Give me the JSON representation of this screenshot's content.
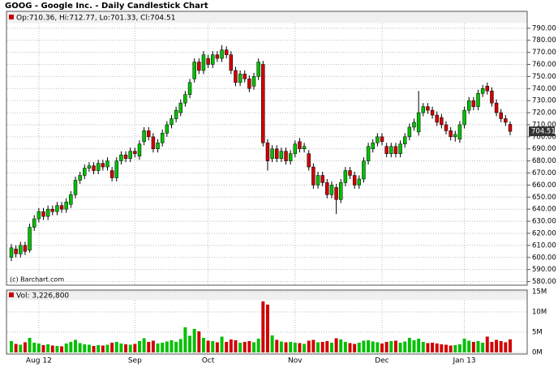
{
  "chart_data": {
    "type": "candlestick",
    "title": "GOOG - Google Inc. - Daily Candlestick Chart",
    "info": "Op:710.36, Hi:712.77, Lo:701.33, Cl:704.51",
    "credit": "(c) Barchart.com",
    "volume_label": "Vol: 3,226,800",
    "up_color": "#00c000",
    "down_color": "#d00000",
    "grid": true,
    "categories": [
      null,
      null,
      null,
      null,
      null,
      null,
      "Aug 12",
      null,
      null,
      null,
      null,
      null,
      null,
      null,
      null,
      null,
      null,
      null,
      null,
      null,
      null,
      null,
      null,
      null,
      null,
      null,
      null,
      "Sep",
      null,
      null,
      null,
      null,
      null,
      null,
      null,
      null,
      null,
      null,
      null,
      null,
      null,
      null,
      null,
      "Oct",
      null,
      null,
      null,
      null,
      null,
      null,
      null,
      null,
      null,
      null,
      null,
      null,
      null,
      null,
      null,
      null,
      null,
      null,
      "Nov",
      null,
      null,
      null,
      null,
      null,
      null,
      null,
      null,
      null,
      null,
      null,
      null,
      null,
      null,
      null,
      null,
      null,
      null,
      "Dec",
      null,
      null,
      null,
      null,
      null,
      null,
      null,
      null,
      null,
      null,
      null,
      null,
      null,
      null,
      null,
      null,
      null,
      "Jan 13",
      null,
      null,
      null,
      null,
      null,
      null,
      null,
      null,
      null,
      null
    ],
    "open": [
      600,
      607,
      603,
      610,
      606,
      625,
      632,
      638,
      634,
      640,
      638,
      643,
      640,
      644,
      652,
      664,
      668,
      674,
      676,
      672,
      678,
      675,
      672,
      666,
      680,
      685,
      682,
      688,
      684,
      696,
      705,
      700,
      690,
      695,
      703,
      710,
      715,
      720,
      728,
      735,
      748,
      762,
      755,
      765,
      760,
      768,
      765,
      772,
      768,
      755,
      745,
      752,
      748,
      742,
      750,
      760,
      695,
      682,
      690,
      682,
      688,
      680,
      686,
      696,
      690,
      686,
      675,
      660,
      668,
      662,
      652,
      658,
      648,
      662,
      672,
      668,
      660,
      665,
      680,
      690,
      695,
      700,
      692,
      686,
      692,
      686,
      694,
      700,
      708,
      704,
      720,
      725,
      722,
      718,
      716,
      710,
      705,
      700,
      698,
      710,
      722,
      730,
      725,
      736,
      742,
      738,
      728,
      720,
      715,
      710.36
    ],
    "high": [
      611,
      610,
      613,
      613,
      628,
      635,
      641,
      641,
      643,
      643,
      646,
      646,
      649,
      655,
      667,
      671,
      677,
      679,
      679,
      681,
      681,
      683,
      675,
      683,
      688,
      688,
      691,
      691,
      697,
      708,
      708,
      703,
      698,
      706,
      713,
      718,
      725,
      731,
      738,
      748,
      765,
      765,
      771,
      768,
      771,
      771,
      776,
      775,
      771,
      758,
      755,
      755,
      751,
      753,
      765,
      763,
      698,
      693,
      693,
      691,
      691,
      689,
      697,
      699,
      695,
      689,
      678,
      671,
      671,
      665,
      663,
      661,
      665,
      675,
      675,
      671,
      668,
      683,
      695,
      698,
      703,
      703,
      695,
      695,
      695,
      697,
      703,
      711,
      715,
      738,
      728,
      728,
      725,
      721,
      719,
      713,
      708,
      705,
      713,
      725,
      733,
      733,
      739,
      743,
      745,
      741,
      731,
      723,
      718,
      712.77
    ],
    "low": [
      597,
      600,
      600,
      602,
      604,
      622,
      629,
      631,
      631,
      635,
      635,
      637,
      637,
      641,
      649,
      661,
      665,
      671,
      669,
      669,
      672,
      672,
      663,
      663,
      677,
      679,
      679,
      683,
      681,
      693,
      697,
      687,
      687,
      692,
      700,
      707,
      712,
      717,
      725,
      732,
      745,
      752,
      752,
      757,
      757,
      762,
      762,
      765,
      752,
      742,
      742,
      745,
      737,
      739,
      747,
      692,
      672,
      679,
      679,
      679,
      677,
      677,
      683,
      687,
      687,
      672,
      657,
      657,
      659,
      649,
      649,
      636,
      645,
      659,
      665,
      657,
      657,
      662,
      677,
      687,
      692,
      693,
      683,
      683,
      683,
      683,
      691,
      697,
      705,
      701,
      717,
      719,
      715,
      709,
      707,
      702,
      697,
      696,
      695,
      707,
      719,
      722,
      722,
      733,
      735,
      725,
      717,
      712,
      709,
      701.33
    ],
    "close": [
      608,
      603,
      610,
      605,
      625,
      632,
      638,
      634,
      640,
      638,
      643,
      640,
      646,
      652,
      664,
      668,
      674,
      676,
      672,
      678,
      675,
      680,
      666,
      680,
      685,
      682,
      688,
      686,
      694,
      705,
      700,
      690,
      695,
      703,
      710,
      715,
      722,
      728,
      735,
      745,
      762,
      755,
      768,
      760,
      768,
      765,
      772,
      768,
      755,
      745,
      752,
      748,
      740,
      750,
      762,
      695,
      680,
      690,
      682,
      688,
      680,
      686,
      694,
      690,
      692,
      675,
      660,
      668,
      662,
      652,
      660,
      648,
      662,
      672,
      668,
      660,
      665,
      680,
      692,
      695,
      700,
      696,
      686,
      692,
      686,
      694,
      700,
      708,
      712,
      720,
      725,
      722,
      718,
      712,
      710,
      705,
      700,
      702,
      710,
      722,
      730,
      725,
      736,
      740,
      738,
      728,
      720,
      715,
      712,
      704.51
    ],
    "volume": [
      2.8,
      2.1,
      1.9,
      2.5,
      3.6,
      2.4,
      2.2,
      1.8,
      2.0,
      1.7,
      1.6,
      1.5,
      2.2,
      2.6,
      3.1,
      2.3,
      2.0,
      1.9,
      1.6,
      1.8,
      1.7,
      1.9,
      2.4,
      2.6,
      2.2,
      2.0,
      1.9,
      2.1,
      2.8,
      3.5,
      2.6,
      2.9,
      2.2,
      2.4,
      2.7,
      3.0,
      2.6,
      3.3,
      6.2,
      4.1,
      5.8,
      5.2,
      3.6,
      2.9,
      2.8,
      2.5,
      3.9,
      2.6,
      3.2,
      3.0,
      2.4,
      2.6,
      2.8,
      2.5,
      3.4,
      12.6,
      11.8,
      4.2,
      3.1,
      2.7,
      2.5,
      2.6,
      2.4,
      2.3,
      2.1,
      2.9,
      3.1,
      2.5,
      2.6,
      2.8,
      2.4,
      3.5,
      3.2,
      2.6,
      2.3,
      2.1,
      2.4,
      2.9,
      3.0,
      2.7,
      2.5,
      2.2,
      2.6,
      2.8,
      2.9,
      2.4,
      2.7,
      3.6,
      3.0,
      3.4,
      2.6,
      2.3,
      2.4,
      2.2,
      2.0,
      1.9,
      1.7,
      1.8,
      2.0,
      3.4,
      2.9,
      2.6,
      2.8,
      2.4,
      3.9,
      2.6,
      3.1,
      2.8,
      2.5,
      3.2268
    ],
    "ylim": [
      577,
      804
    ],
    "yticks": [
      {
        "value": 580,
        "label": "580.00"
      },
      {
        "value": 590,
        "label": "590.00"
      },
      {
        "value": 600,
        "label": "600.00"
      },
      {
        "value": 610,
        "label": "610.00"
      },
      {
        "value": 620,
        "label": "620.00"
      },
      {
        "value": 630,
        "label": "630.00"
      },
      {
        "value": 640,
        "label": "640.00"
      },
      {
        "value": 650,
        "label": "650.00"
      },
      {
        "value": 660,
        "label": "660.00"
      },
      {
        "value": 670,
        "label": "670.00"
      },
      {
        "value": 680,
        "label": "680.00"
      },
      {
        "value": 690,
        "label": "690.00"
      },
      {
        "value": 700,
        "label": "700.00"
      },
      {
        "value": 710,
        "label": "710.00"
      },
      {
        "value": 720,
        "label": "720.00"
      },
      {
        "value": 730,
        "label": "730.00"
      },
      {
        "value": 740,
        "label": "740.00"
      },
      {
        "value": 750,
        "label": "750.00"
      },
      {
        "value": 760,
        "label": "760.00"
      },
      {
        "value": 770,
        "label": "770.00"
      },
      {
        "value": 780,
        "label": "780.00"
      },
      {
        "value": 790,
        "label": "790.00"
      }
    ],
    "volume_ylim": [
      0,
      15.4
    ],
    "volume_ticks": [
      {
        "value": 0,
        "label": "0M"
      },
      {
        "value": 5,
        "label": "5M"
      },
      {
        "value": 10,
        "label": "10M"
      },
      {
        "value": 15,
        "label": "15M"
      }
    ]
  }
}
